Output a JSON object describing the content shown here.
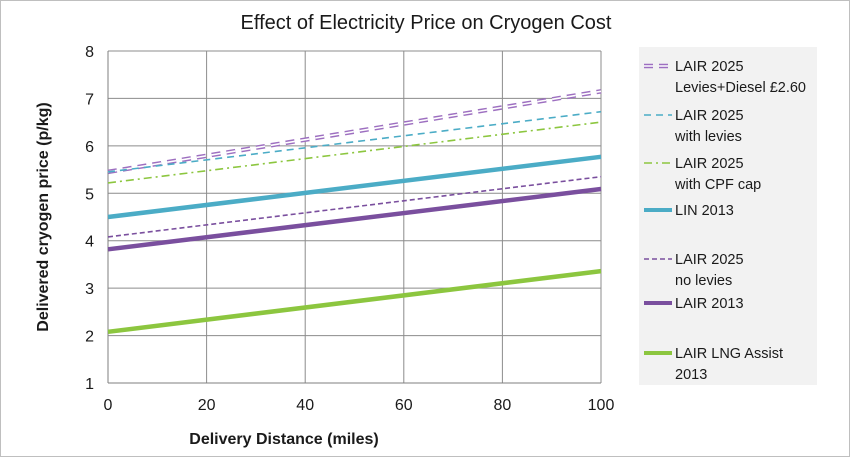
{
  "chart_data": {
    "type": "line",
    "title": "Effect of Electricity Price on Cryogen Cost",
    "xlabel": "Delivery Distance (miles)",
    "ylabel": "Delivered cryogen price (p/kg)",
    "xlim": [
      0,
      100
    ],
    "ylim": [
      1,
      8
    ],
    "xticks": [
      "0",
      "20",
      "40",
      "60",
      "80",
      "100"
    ],
    "yticks": [
      "1",
      "2",
      "3",
      "4",
      "5",
      "6",
      "7",
      "8"
    ],
    "grid": true,
    "legend_position": "right",
    "series": [
      {
        "name": "LAIR 2025 Levies+Diesel £2.60",
        "legend_lines": [
          "LAIR 2025",
          "Levies+Diesel £2.60"
        ],
        "x": [
          0,
          100
        ],
        "y": [
          5.45,
          7.15
        ],
        "color": "#9d6fc0",
        "style": "double-dash"
      },
      {
        "name": "LAIR 2025 with levies",
        "legend_lines": [
          "LAIR 2025",
          "with levies"
        ],
        "x": [
          0,
          100
        ],
        "y": [
          5.45,
          6.72
        ],
        "color": "#4bacc6",
        "style": "dash"
      },
      {
        "name": "LAIR 2025 with CPF cap",
        "legend_lines": [
          "LAIR 2025",
          "with CPF cap"
        ],
        "x": [
          0,
          100
        ],
        "y": [
          5.22,
          6.5
        ],
        "color": "#8cc63f",
        "style": "dash-dot"
      },
      {
        "name": "LIN 2013",
        "legend_lines": [
          "LIN 2013"
        ],
        "x": [
          0,
          100
        ],
        "y": [
          4.5,
          5.77
        ],
        "color": "#4bacc6",
        "style": "solid"
      },
      {
        "name": "LAIR 2025 no levies",
        "legend_lines": [
          "LAIR 2025",
          "no levies"
        ],
        "x": [
          0,
          100
        ],
        "y": [
          4.08,
          5.35
        ],
        "color": "#7a4f9e",
        "style": "short-dash"
      },
      {
        "name": "LAIR 2013",
        "legend_lines": [
          "LAIR 2013"
        ],
        "x": [
          0,
          100
        ],
        "y": [
          3.82,
          5.09
        ],
        "color": "#7a4f9e",
        "style": "solid"
      },
      {
        "name": "LAIR LNG Assist 2013",
        "legend_lines": [
          "LAIR LNG Assist",
          "2013"
        ],
        "x": [
          0,
          100
        ],
        "y": [
          2.08,
          3.36
        ],
        "color": "#8cc63f",
        "style": "solid"
      }
    ]
  }
}
